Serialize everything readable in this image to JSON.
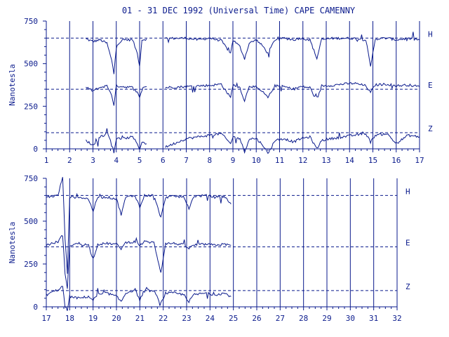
{
  "chart_data": {
    "type": "line",
    "title": "01 - 31 DEC 1992 (Universal Time) CAPE CAMENNY",
    "ylabel": "Nanotesla",
    "xlabel": "",
    "grid": true,
    "color": "#0a1a8c",
    "panels": [
      {
        "xlim": [
          1,
          17
        ],
        "ylim": [
          0,
          750
        ],
        "x_ticks": [
          1,
          2,
          3,
          4,
          5,
          6,
          7,
          8,
          9,
          10,
          11,
          12,
          13,
          14,
          15,
          16,
          17
        ],
        "y_ticks": [
          0,
          250,
          500,
          750
        ],
        "data_coverage": [
          [
            2.6,
            5.3
          ],
          [
            6.0,
            17.0
          ]
        ],
        "series": [
          {
            "name": "H",
            "baseline": 650,
            "values": [
              [
                2.7,
                645
              ],
              [
                3.0,
                630
              ],
              [
                3.3,
                640
              ],
              [
                3.6,
                620
              ],
              [
                3.8,
                520
              ],
              [
                3.9,
                440
              ],
              [
                4.0,
                610
              ],
              [
                4.3,
                640
              ],
              [
                4.7,
                640
              ],
              [
                4.9,
                560
              ],
              [
                5.0,
                490
              ],
              [
                5.1,
                640
              ],
              [
                5.3,
                645
              ],
              [
                6.1,
                648
              ],
              [
                7.0,
                650
              ],
              [
                7.5,
                640
              ],
              [
                8.0,
                650
              ],
              [
                8.5,
                635
              ],
              [
                8.9,
                560
              ],
              [
                9.0,
                640
              ],
              [
                9.3,
                600
              ],
              [
                9.5,
                530
              ],
              [
                9.7,
                620
              ],
              [
                10.0,
                640
              ],
              [
                10.3,
                600
              ],
              [
                10.5,
                560
              ],
              [
                10.8,
                640
              ],
              [
                11.2,
                650
              ],
              [
                11.6,
                640
              ],
              [
                11.9,
                650
              ],
              [
                12.3,
                640
              ],
              [
                12.6,
                530
              ],
              [
                12.8,
                640
              ],
              [
                13.2,
                648
              ],
              [
                13.7,
                650
              ],
              [
                14.2,
                648
              ],
              [
                14.7,
                640
              ],
              [
                14.9,
                480
              ],
              [
                15.1,
                645
              ],
              [
                15.6,
                650
              ],
              [
                16.0,
                640
              ],
              [
                16.5,
                648
              ],
              [
                17.0,
                640
              ]
            ]
          },
          {
            "name": "E",
            "baseline": 350,
            "values": [
              [
                2.7,
                360
              ],
              [
                3.0,
                340
              ],
              [
                3.3,
                360
              ],
              [
                3.6,
                370
              ],
              [
                3.8,
                320
              ],
              [
                3.9,
                250
              ],
              [
                4.0,
                370
              ],
              [
                4.3,
                365
              ],
              [
                4.7,
                360
              ],
              [
                4.9,
                330
              ],
              [
                5.0,
                300
              ],
              [
                5.1,
                360
              ],
              [
                5.3,
                365
              ],
              [
                6.1,
                360
              ],
              [
                7.0,
                365
              ],
              [
                7.5,
                370
              ],
              [
                8.0,
                372
              ],
              [
                8.5,
                380
              ],
              [
                8.9,
                300
              ],
              [
                9.0,
                375
              ],
              [
                9.3,
                360
              ],
              [
                9.5,
                280
              ],
              [
                9.7,
                370
              ],
              [
                10.0,
                360
              ],
              [
                10.3,
                330
              ],
              [
                10.5,
                300
              ],
              [
                10.8,
                370
              ],
              [
                11.2,
                365
              ],
              [
                11.6,
                350
              ],
              [
                11.9,
                365
              ],
              [
                12.3,
                360
              ],
              [
                12.6,
                280
              ],
              [
                12.8,
                370
              ],
              [
                13.2,
                372
              ],
              [
                13.7,
                380
              ],
              [
                14.2,
                385
              ],
              [
                14.7,
                370
              ],
              [
                14.9,
                330
              ],
              [
                15.1,
                375
              ],
              [
                15.6,
                380
              ],
              [
                16.0,
                370
              ],
              [
                16.5,
                375
              ],
              [
                17.0,
                365
              ]
            ]
          },
          {
            "name": "Z",
            "baseline": 95,
            "values": [
              [
                2.7,
                50
              ],
              [
                3.0,
                20
              ],
              [
                3.3,
                70
              ],
              [
                3.6,
                90
              ],
              [
                3.8,
                40
              ],
              [
                3.9,
                -20
              ],
              [
                4.0,
                60
              ],
              [
                4.3,
                60
              ],
              [
                4.7,
                70
              ],
              [
                4.9,
                30
              ],
              [
                5.0,
                0
              ],
              [
                5.1,
                40
              ],
              [
                5.3,
                30
              ],
              [
                6.1,
                10
              ],
              [
                7.0,
                60
              ],
              [
                7.5,
                70
              ],
              [
                8.0,
                80
              ],
              [
                8.5,
                90
              ],
              [
                8.9,
                30
              ],
              [
                9.0,
                70
              ],
              [
                9.3,
                60
              ],
              [
                9.5,
                -20
              ],
              [
                9.7,
                60
              ],
              [
                10.0,
                60
              ],
              [
                10.3,
                20
              ],
              [
                10.5,
                -30
              ],
              [
                10.8,
                50
              ],
              [
                11.2,
                60
              ],
              [
                11.6,
                40
              ],
              [
                11.9,
                60
              ],
              [
                12.3,
                70
              ],
              [
                12.6,
                0
              ],
              [
                12.8,
                50
              ],
              [
                13.2,
                60
              ],
              [
                13.7,
                70
              ],
              [
                14.2,
                80
              ],
              [
                14.7,
                90
              ],
              [
                14.9,
                40
              ],
              [
                15.1,
                80
              ],
              [
                15.6,
                90
              ],
              [
                16.0,
                30
              ],
              [
                16.5,
                80
              ],
              [
                17.0,
                70
              ]
            ]
          }
        ]
      },
      {
        "xlim": [
          17,
          32
        ],
        "ylim": [
          0,
          750
        ],
        "x_ticks": [
          17,
          18,
          19,
          20,
          21,
          22,
          23,
          24,
          25,
          26,
          27,
          28,
          29,
          30,
          31,
          32
        ],
        "y_ticks": [
          0,
          250,
          500,
          750
        ],
        "data_coverage": [
          [
            17.0,
            25.0
          ]
        ],
        "series": [
          {
            "name": "H",
            "baseline": 650,
            "values": [
              [
                17.0,
                640
              ],
              [
                17.5,
                650
              ],
              [
                17.7,
                760
              ],
              [
                17.8,
                400
              ],
              [
                17.9,
                200
              ],
              [
                18.0,
                640
              ],
              [
                18.4,
                640
              ],
              [
                18.8,
                630
              ],
              [
                19.0,
                560
              ],
              [
                19.2,
                640
              ],
              [
                19.6,
                640
              ],
              [
                20.0,
                630
              ],
              [
                20.2,
                540
              ],
              [
                20.4,
                640
              ],
              [
                20.8,
                650
              ],
              [
                21.0,
                580
              ],
              [
                21.2,
                650
              ],
              [
                21.6,
                650
              ],
              [
                21.9,
                520
              ],
              [
                22.1,
                640
              ],
              [
                22.5,
                645
              ],
              [
                22.9,
                640
              ],
              [
                23.1,
                570
              ],
              [
                23.3,
                645
              ],
              [
                23.8,
                650
              ],
              [
                24.2,
                640
              ],
              [
                24.6,
                645
              ],
              [
                24.9,
                600
              ]
            ]
          },
          {
            "name": "E",
            "baseline": 350,
            "values": [
              [
                17.0,
                360
              ],
              [
                17.5,
                380
              ],
              [
                17.7,
                420
              ],
              [
                17.8,
                200
              ],
              [
                17.9,
                100
              ],
              [
                18.0,
                360
              ],
              [
                18.4,
                370
              ],
              [
                18.8,
                360
              ],
              [
                19.0,
                280
              ],
              [
                19.2,
                365
              ],
              [
                19.6,
                370
              ],
              [
                20.0,
                365
              ],
              [
                20.2,
                340
              ],
              [
                20.4,
                375
              ],
              [
                20.8,
                380
              ],
              [
                21.0,
                360
              ],
              [
                21.2,
                380
              ],
              [
                21.6,
                375
              ],
              [
                21.9,
                200
              ],
              [
                22.1,
                370
              ],
              [
                22.5,
                370
              ],
              [
                22.9,
                360
              ],
              [
                23.1,
                340
              ],
              [
                23.3,
                360
              ],
              [
                23.8,
                365
              ],
              [
                24.2,
                360
              ],
              [
                24.6,
                365
              ],
              [
                24.9,
                360
              ]
            ]
          },
          {
            "name": "Z",
            "baseline": 95,
            "values": [
              [
                17.0,
                70
              ],
              [
                17.5,
                100
              ],
              [
                17.7,
                120
              ],
              [
                17.8,
                0
              ],
              [
                17.9,
                -20
              ],
              [
                18.0,
                60
              ],
              [
                18.4,
                50
              ],
              [
                18.8,
                60
              ],
              [
                19.0,
                40
              ],
              [
                19.2,
                70
              ],
              [
                19.6,
                80
              ],
              [
                20.0,
                60
              ],
              [
                20.2,
                30
              ],
              [
                20.4,
                80
              ],
              [
                20.8,
                100
              ],
              [
                21.0,
                40
              ],
              [
                21.2,
                100
              ],
              [
                21.6,
                90
              ],
              [
                21.9,
                20
              ],
              [
                22.1,
                80
              ],
              [
                22.5,
                80
              ],
              [
                22.9,
                70
              ],
              [
                23.1,
                30
              ],
              [
                23.3,
                70
              ],
              [
                23.8,
                80
              ],
              [
                24.2,
                70
              ],
              [
                24.6,
                80
              ],
              [
                24.9,
                60
              ]
            ]
          }
        ]
      }
    ]
  }
}
